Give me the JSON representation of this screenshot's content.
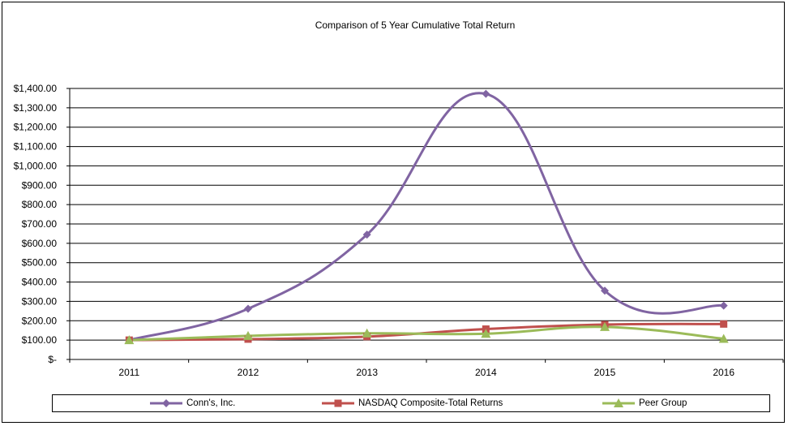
{
  "chart_data": {
    "type": "line",
    "title": "Comparison  of 5 Year Cumulative  Total Return",
    "categories": [
      "2011",
      "2012",
      "2013",
      "2014",
      "2015",
      "2016"
    ],
    "ylim": [
      0,
      1400
    ],
    "y_ticks": [
      0,
      100,
      200,
      300,
      400,
      500,
      600,
      700,
      800,
      900,
      1000,
      1100,
      1200,
      1300,
      1400
    ],
    "y_tick_labels": [
      "$-",
      "$100.00",
      "$200.00",
      "$300.00",
      "$400.00",
      "$500.00",
      "$600.00",
      "$700.00",
      "$800.00",
      "$900.00",
      "$1,000.00",
      "$1,100.00",
      "$1,200.00",
      "$1,300.00",
      "$1,400.00"
    ],
    "grid": true,
    "legend_position": "bottom",
    "series": [
      {
        "name": "Conn's, Inc.",
        "marker": "diamond",
        "color": "#8064A2",
        "values": [
          100,
          262,
          645,
          1372,
          355,
          278
        ]
      },
      {
        "name": "NASDAQ Composite-Total Returns",
        "marker": "square",
        "color": "#C0504D",
        "values": [
          100,
          105,
          118,
          157,
          180,
          183
        ]
      },
      {
        "name": "Peer Group",
        "marker": "triangle",
        "color": "#9BBB59",
        "values": [
          100,
          122,
          135,
          133,
          168,
          107
        ]
      }
    ]
  }
}
